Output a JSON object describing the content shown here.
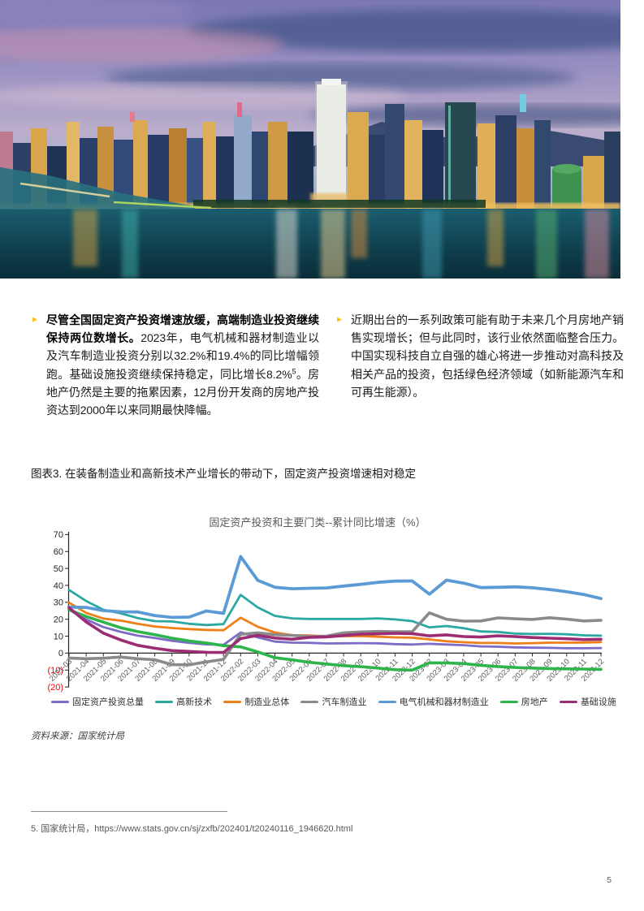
{
  "page_number": "5",
  "hero": {
    "image_name": "city-skyline-night-photo"
  },
  "bullets": {
    "marker": "►",
    "marker_color": "#FFC20E",
    "left": {
      "bold": "尽管全国固定资产投资增速放缓，高端制造业投资继续保持两位数增长。",
      "body_before_sup": "2023年，电气机械和器材制造业以及汽车制造业投资分别以32.2%和19.4%的同比增幅领跑。基础设施投资继续保持稳定，同比增长8.2%",
      "footnote_ref": "5",
      "body_after_sup": "。房地产仍然是主要的拖累因素，12月份开发商的房地产投资达到2000年以来同期最快降幅。"
    },
    "right": {
      "body": "近期出台的一系列政策可能有助于未来几个月房地产销售实现增长；但与此同时，该行业依然面临整合压力。中国实现科技自立自强的雄心将进一步推动对高科技及相关产品的投资，包括绿色经济领域（如新能源汽车和可再生能源）。"
    }
  },
  "figure": {
    "caption": "图表3. 在装备制造业和高新技术产业增长的带动下，固定资产投资增速相对稳定",
    "source": "资料来源：国家统计局",
    "chart_data": {
      "type": "line",
      "title": "固定资产投资和主要门类--累计同比增速（%）",
      "categories": [
        "2021-03",
        "2021-04",
        "2021-05",
        "2021-06",
        "2021-07",
        "2021-08",
        "2021-09",
        "2021-10",
        "2021-11",
        "2021-12",
        "2022-02",
        "2022-03",
        "2022-04",
        "2022-05",
        "2022-06",
        "2022-07",
        "2022-08",
        "2022-09",
        "2022-10",
        "2022-11",
        "2022-12",
        "2023-02",
        "2023-03",
        "2023-04",
        "2023-05",
        "2023-06",
        "2023-07",
        "2023-08",
        "2023-09",
        "2023-10",
        "2023-11",
        "2023-12"
      ],
      "series": [
        {
          "name": "固定资产投资总量",
          "color": "#7D6BC8",
          "values": [
            25.6,
            19.9,
            15.4,
            12.6,
            10.3,
            8.9,
            7.3,
            6.1,
            5.2,
            4.9,
            12.2,
            9.3,
            6.8,
            6.2,
            6.1,
            5.7,
            5.8,
            5.9,
            5.8,
            5.3,
            5.1,
            5.5,
            5.1,
            4.7,
            4.0,
            3.8,
            3.4,
            3.2,
            3.1,
            2.9,
            2.9,
            3.0
          ]
        },
        {
          "name": "高新技术",
          "color": "#2BA9A0",
          "values": [
            37.3,
            30.8,
            25.6,
            23.5,
            20.7,
            18.9,
            18.7,
            17.3,
            16.6,
            17.1,
            34.4,
            27.0,
            22.0,
            20.5,
            20.2,
            20.2,
            20.2,
            20.2,
            20.5,
            19.9,
            18.9,
            15.2,
            16.0,
            14.7,
            12.8,
            12.5,
            11.5,
            11.3,
            11.4,
            11.1,
            10.5,
            10.3
          ]
        },
        {
          "name": "制造业总体",
          "color": "#F07F1A",
          "values": [
            29.8,
            23.8,
            20.4,
            19.2,
            17.3,
            15.7,
            14.8,
            14.2,
            13.7,
            13.5,
            20.9,
            15.6,
            12.2,
            10.6,
            10.4,
            9.9,
            10.0,
            10.1,
            9.7,
            9.3,
            9.1,
            8.1,
            7.0,
            6.4,
            6.0,
            6.0,
            5.7,
            5.9,
            6.2,
            6.2,
            6.3,
            6.5
          ]
        },
        {
          "name": "汽车制造业",
          "color": "#8A8A8A",
          "values": [
            -2.9,
            -3.3,
            -3.0,
            -2.3,
            -3.3,
            -3.9,
            -6.8,
            -6.9,
            -5.2,
            -3.7,
            11.1,
            12.0,
            10.9,
            10.5,
            9.8,
            10.0,
            12.0,
            12.5,
            12.8,
            12.6,
            12.6,
            23.8,
            20.0,
            18.9,
            19.0,
            20.8,
            20.3,
            19.9,
            20.9,
            20.1,
            19.0,
            19.4
          ]
        },
        {
          "name": "电气机械和器材制造业",
          "color": "#5B9BD5",
          "values": [
            27.2,
            27.0,
            25.1,
            24.4,
            24.3,
            22.2,
            21.1,
            21.3,
            24.9,
            23.5,
            57.0,
            43.0,
            38.9,
            38.0,
            38.3,
            38.5,
            39.6,
            40.6,
            41.8,
            42.5,
            42.6,
            34.8,
            43.1,
            41.3,
            38.7,
            38.9,
            39.1,
            38.6,
            37.6,
            36.3,
            34.6,
            32.2
          ]
        },
        {
          "name": "房地产",
          "color": "#2FB44C",
          "values": [
            25.6,
            21.6,
            18.3,
            15.0,
            12.7,
            10.9,
            8.8,
            7.2,
            6.0,
            4.4,
            3.7,
            0.7,
            -2.7,
            -4.0,
            -5.4,
            -6.4,
            -7.4,
            -8.0,
            -8.8,
            -9.8,
            -10.0,
            -5.7,
            -5.8,
            -6.2,
            -7.2,
            -7.9,
            -8.5,
            -8.8,
            -9.1,
            -9.3,
            -9.4,
            -9.6
          ]
        },
        {
          "name": "基础设施",
          "color": "#9C2C74",
          "values": [
            26.8,
            18.4,
            11.8,
            7.8,
            4.6,
            2.9,
            1.5,
            1.0,
            0.5,
            0.4,
            8.6,
            10.5,
            8.9,
            8.2,
            9.3,
            9.6,
            10.4,
            11.2,
            11.4,
            11.7,
            11.5,
            10.2,
            10.8,
            9.8,
            9.5,
            10.2,
            9.8,
            9.2,
            8.8,
            8.5,
            8.0,
            8.2
          ]
        }
      ],
      "ylim": [
        -20,
        70
      ],
      "y_axis": {
        "tick_labels": [
          "70",
          "60",
          "50",
          "40",
          "30",
          "20",
          "10",
          "0",
          "(10)",
          "(20)"
        ],
        "tick_values": [
          70,
          60,
          50,
          40,
          30,
          20,
          10,
          0,
          -10,
          -20
        ],
        "label_color": "#262626",
        "negative_label_color": "#FF0000"
      },
      "x_tick_label_color": "#595959",
      "x_tick_label_rotation": -45,
      "grid": false,
      "legend_position": "bottom"
    }
  },
  "footnote": {
    "prefix": "5. 国家统计局，",
    "url": "https://www.stats.gov.cn/sj/zxfb/202401/t20240116_1946620.html"
  }
}
